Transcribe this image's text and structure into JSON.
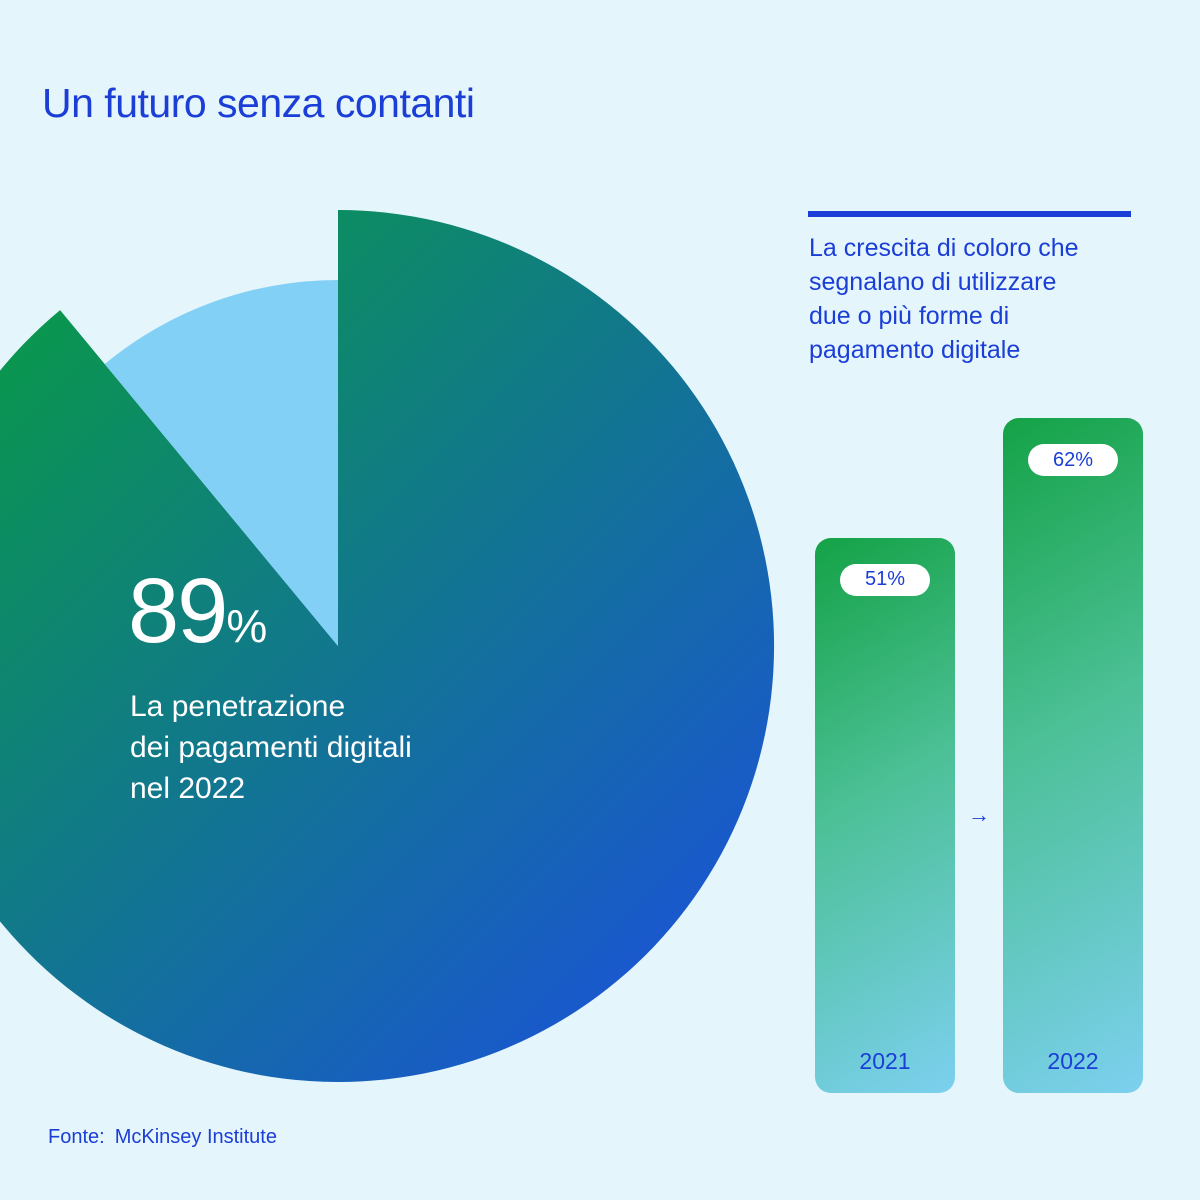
{
  "title": "Un futuro senza contanti",
  "chart_data": [
    {
      "type": "pie",
      "slices": [
        {
          "label": "La penetrazione dei pagamenti digitali nel 2022",
          "value": 89
        },
        {
          "label": "",
          "value": 11
        }
      ],
      "value_label": "89",
      "value_suffix": "%",
      "caption_lines": [
        "La penetrazione",
        "dei pagamenti digitali",
        "nel 2022"
      ],
      "colors": {
        "main_start": "#07a236",
        "main_end": "#1c4ce6",
        "rest": "#83d0f6"
      }
    },
    {
      "type": "bar",
      "title": "La crescita di coloro che segnalano di utilizzare due o più forme di pagamento digitale",
      "title_lines": [
        "La crescita di coloro che",
        "segnalano di utilizzare",
        "due o più forme di",
        "pagamento digitale"
      ],
      "categories": [
        "2021",
        "2022"
      ],
      "values": [
        51,
        62
      ],
      "value_labels": [
        "51%",
        "62%"
      ],
      "ylim": [
        0,
        62
      ],
      "arrow": "→",
      "colors": {
        "top": "#14a246",
        "bottom": "#7cd0ef",
        "accent": "#1a3ed6"
      }
    }
  ],
  "source": {
    "label": "Fonte:",
    "text": "McKinsey Institute"
  }
}
